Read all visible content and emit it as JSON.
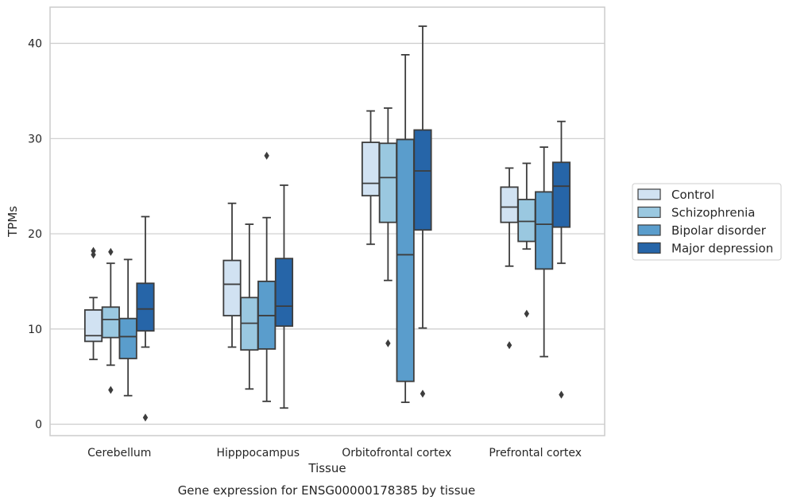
{
  "chart_data": {
    "type": "box",
    "xlabel": "Tissue",
    "ylabel": "TPMs",
    "caption": "Gene expression for ENSG00000178385 by tissue",
    "ylim": [
      -1.2,
      43.8
    ],
    "yticks": [
      0,
      10,
      20,
      30,
      40
    ],
    "grid": "horizontal",
    "legend_position": "right",
    "categories": [
      "Cerebellum",
      "Hipppocampus",
      "Orbitofrontal cortex",
      "Prefrontal cortex"
    ],
    "series": [
      {
        "name": "Control",
        "color": "#d1e2f2",
        "boxes": [
          {
            "whisker_low": 6.8,
            "q1": 8.7,
            "median": 9.3,
            "q3": 12.0,
            "whisker_high": 13.3,
            "outliers": [
              17.8,
              18.2
            ]
          },
          {
            "whisker_low": 8.1,
            "q1": 11.4,
            "median": 14.7,
            "q3": 17.2,
            "whisker_high": 23.2,
            "outliers": []
          },
          {
            "whisker_low": 18.9,
            "q1": 24.0,
            "median": 25.3,
            "q3": 29.6,
            "whisker_high": 32.9,
            "outliers": []
          },
          {
            "whisker_low": 16.6,
            "q1": 21.2,
            "median": 22.8,
            "q3": 24.9,
            "whisker_high": 26.9,
            "outliers": [
              8.3
            ]
          }
        ]
      },
      {
        "name": "Schizophrenia",
        "color": "#9ac8e0",
        "boxes": [
          {
            "whisker_low": 6.2,
            "q1": 9.1,
            "median": 11.0,
            "q3": 12.3,
            "whisker_high": 16.9,
            "outliers": [
              3.6,
              18.1
            ]
          },
          {
            "whisker_low": 3.7,
            "q1": 7.8,
            "median": 10.6,
            "q3": 13.3,
            "whisker_high": 21.0,
            "outliers": []
          },
          {
            "whisker_low": 15.1,
            "q1": 21.2,
            "median": 25.9,
            "q3": 29.5,
            "whisker_high": 33.2,
            "outliers": [
              8.5
            ]
          },
          {
            "whisker_low": 18.4,
            "q1": 19.2,
            "median": 21.3,
            "q3": 23.6,
            "whisker_high": 27.4,
            "outliers": [
              11.6
            ]
          }
        ]
      },
      {
        "name": "Bipolar disorder",
        "color": "#5a9dcc",
        "boxes": [
          {
            "whisker_low": 3.0,
            "q1": 6.9,
            "median": 9.2,
            "q3": 11.1,
            "whisker_high": 17.3,
            "outliers": []
          },
          {
            "whisker_low": 2.4,
            "q1": 7.9,
            "median": 11.4,
            "q3": 15.0,
            "whisker_high": 21.7,
            "outliers": [
              28.2
            ]
          },
          {
            "whisker_low": 2.3,
            "q1": 4.5,
            "median": 17.8,
            "q3": 29.9,
            "whisker_high": 38.8,
            "outliers": []
          },
          {
            "whisker_low": 7.1,
            "q1": 16.3,
            "median": 21.0,
            "q3": 24.4,
            "whisker_high": 29.1,
            "outliers": []
          }
        ]
      },
      {
        "name": "Major depression",
        "color": "#2665a8",
        "boxes": [
          {
            "whisker_low": 8.1,
            "q1": 9.8,
            "median": 12.1,
            "q3": 14.8,
            "whisker_high": 21.8,
            "outliers": [
              0.7
            ]
          },
          {
            "whisker_low": 1.7,
            "q1": 10.3,
            "median": 12.4,
            "q3": 17.4,
            "whisker_high": 25.1,
            "outliers": []
          },
          {
            "whisker_low": 10.1,
            "q1": 20.4,
            "median": 26.6,
            "q3": 30.9,
            "whisker_high": 41.8,
            "outliers": [
              3.2
            ]
          },
          {
            "whisker_low": 16.9,
            "q1": 20.7,
            "median": 25.0,
            "q3": 27.5,
            "whisker_high": 31.8,
            "outliers": [
              3.1
            ]
          }
        ]
      }
    ]
  }
}
